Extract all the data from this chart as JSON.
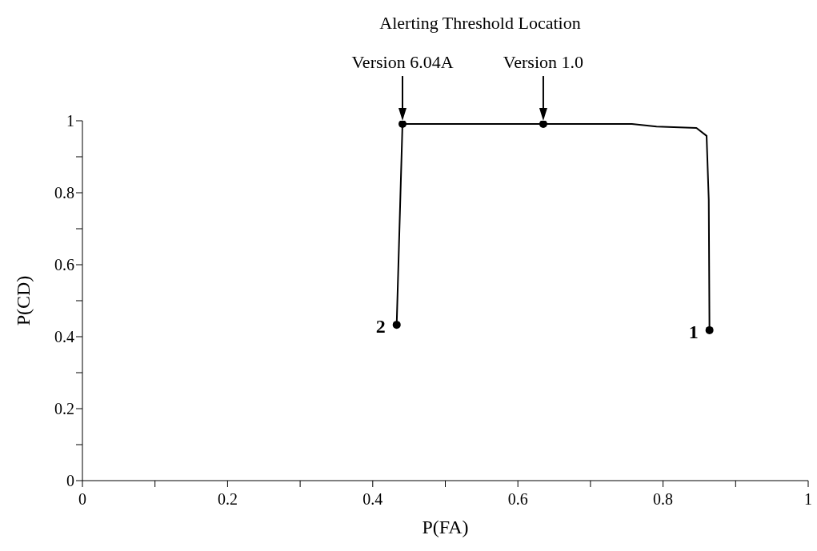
{
  "chart_data": {
    "type": "line",
    "xlabel": "P(FA)",
    "ylabel": "P(CD)",
    "xlim": [
      0,
      1
    ],
    "ylim": [
      0,
      1
    ],
    "xticks": [
      0,
      {
        "value": 0.1,
        "label": null
      },
      0.2,
      {
        "value": 0.3,
        "label": null
      },
      0.4,
      {
        "value": 0.5,
        "label": null
      },
      0.6,
      {
        "value": 0.7,
        "label": null
      },
      0.8,
      {
        "value": 0.9,
        "label": null
      },
      1
    ],
    "yticks": [
      0,
      {
        "value": 0.1,
        "label": null
      },
      0.2,
      {
        "value": 0.3,
        "label": null
      },
      0.4,
      {
        "value": 0.5,
        "label": null
      },
      0.6,
      {
        "value": 0.7,
        "label": null
      },
      0.8,
      {
        "value": 0.9,
        "label": null
      },
      1
    ],
    "grid": false,
    "series": [
      {
        "color": "#000000",
        "marker": "none",
        "x": [
          0.433,
          0.441,
          0.635,
          0.757,
          0.791,
          0.846,
          0.86,
          0.863,
          0.864
        ],
        "values": [
          0.433,
          0.991,
          0.991,
          0.991,
          0.984,
          0.98,
          0.958,
          0.78,
          0.418
        ]
      },
      {
        "type": "scatter",
        "color": "#000000",
        "marker": "circle",
        "x": [
          0.433,
          0.441,
          0.635,
          0.864
        ],
        "values": [
          0.433,
          0.991,
          0.991,
          0.418
        ]
      }
    ],
    "annotations": [
      "Alerting Threshold Location",
      {
        "text": "Version 6.04A",
        "x": 0.441,
        "y": 0.991
      },
      {
        "text": "Version 1.0",
        "x": 0.635,
        "y": 0.991
      },
      {
        "text": "2",
        "x": 0.433,
        "y": 0.433
      },
      {
        "text": "1",
        "x": 0.864,
        "y": 0.418
      }
    ]
  }
}
